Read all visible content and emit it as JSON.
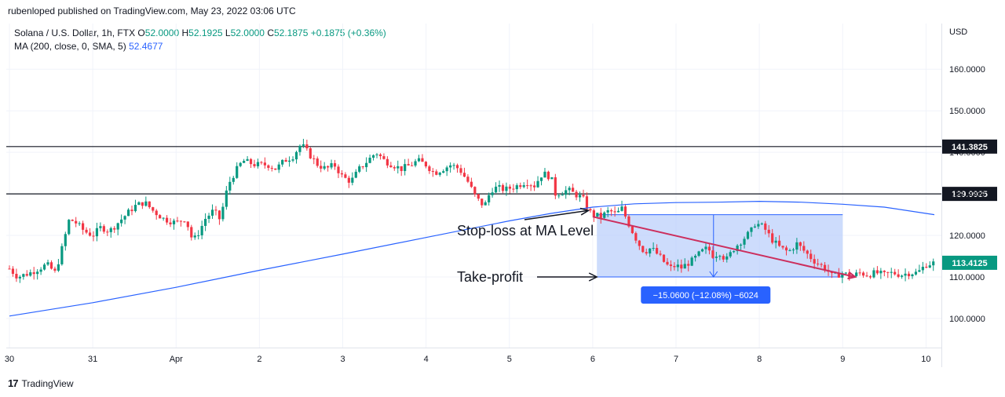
{
  "header": {
    "published": "rubenloped published on TradingView.com, May 23, 2022 03:06 UTC"
  },
  "legend": {
    "symbol": "Solana / U.S. Dollar, 1h, FTX",
    "o_label": "O",
    "o_value": "52.0000",
    "h_label": "H",
    "h_value": "52.1925",
    "l_label": "L",
    "l_value": "52.0000",
    "c_label": "C",
    "c_value": "52.1875",
    "change": "+0.1875 (+0.36%)",
    "ma_label": "MA (200, close, 0, SMA, 5)",
    "ma_value": "52.4677"
  },
  "footer": {
    "logo_glyph": "17",
    "brand": "TradingView"
  },
  "colors": {
    "up": "#089981",
    "down": "#f23645",
    "ma": "#2962ff",
    "trendline": "#cc2e5d",
    "measure_fill": "#bcd0fb",
    "measure_badge": "#2962ff",
    "hline": "#131722",
    "axis_text": "#131722",
    "grid": "#f0f3fa"
  },
  "chart_data": {
    "type": "candlestick",
    "currency": "USD",
    "y_ticks": [
      "160.0000",
      "150.0000",
      "140.0000",
      "130.0000",
      "120.0000",
      "110.0000",
      "100.0000"
    ],
    "y_tick_values": [
      160,
      150,
      140,
      130,
      120,
      110,
      100
    ],
    "ylim": [
      93,
      171
    ],
    "x_ticks": [
      "30",
      "31",
      "Apr",
      "2",
      "3",
      "4",
      "5",
      "6",
      "7",
      "8",
      "9",
      "10"
    ],
    "x_tick_days": [
      0,
      1,
      2,
      3,
      4,
      5,
      6,
      7,
      8,
      9,
      10,
      11
    ],
    "xlim": [
      0,
      11.1
    ],
    "horizontal_lines": [
      {
        "value": 141.3825,
        "label": "141.3825"
      },
      {
        "value": 129.9925,
        "label": "129.9925"
      }
    ],
    "last_price": {
      "value": 113.4125,
      "label": "113.4125"
    },
    "close_path": [
      [
        0.0,
        112
      ],
      [
        0.1,
        110
      ],
      [
        0.25,
        111
      ],
      [
        0.45,
        113
      ],
      [
        0.55,
        111
      ],
      [
        0.62,
        116
      ],
      [
        0.72,
        124
      ],
      [
        0.8,
        123
      ],
      [
        0.9,
        121
      ],
      [
        1.0,
        120
      ],
      [
        1.1,
        122
      ],
      [
        1.2,
        121
      ],
      [
        1.3,
        123
      ],
      [
        1.4,
        125
      ],
      [
        1.5,
        127
      ],
      [
        1.62,
        128
      ],
      [
        1.72,
        126
      ],
      [
        1.85,
        124
      ],
      [
        2.0,
        123
      ],
      [
        2.1,
        124
      ],
      [
        2.15,
        122
      ],
      [
        2.2,
        118.5
      ],
      [
        2.28,
        121
      ],
      [
        2.35,
        124
      ],
      [
        2.45,
        126
      ],
      [
        2.52,
        124
      ],
      [
        2.58,
        128
      ],
      [
        2.62,
        132
      ],
      [
        2.7,
        135
      ],
      [
        2.8,
        138
      ],
      [
        2.95,
        137
      ],
      [
        3.1,
        137
      ],
      [
        3.2,
        136
      ],
      [
        3.3,
        138
      ],
      [
        3.4,
        139
      ],
      [
        3.5,
        142
      ],
      [
        3.58,
        140
      ],
      [
        3.7,
        137
      ],
      [
        3.8,
        136
      ],
      [
        3.9,
        137
      ],
      [
        4.0,
        134
      ],
      [
        4.1,
        133
      ],
      [
        4.2,
        136
      ],
      [
        4.3,
        138
      ],
      [
        4.4,
        140
      ],
      [
        4.5,
        138
      ],
      [
        4.6,
        137
      ],
      [
        4.7,
        136
      ],
      [
        4.82,
        137
      ],
      [
        4.9,
        138
      ],
      [
        5.0,
        137
      ],
      [
        5.1,
        135
      ],
      [
        5.2,
        136
      ],
      [
        5.3,
        137
      ],
      [
        5.4,
        136
      ],
      [
        5.5,
        133
      ],
      [
        5.6,
        129
      ],
      [
        5.7,
        127
      ],
      [
        5.78,
        131
      ],
      [
        5.85,
        131.5
      ],
      [
        5.95,
        131
      ],
      [
        6.1,
        132
      ],
      [
        6.2,
        133
      ],
      [
        6.3,
        132
      ],
      [
        6.4,
        135
      ],
      [
        6.5,
        134
      ],
      [
        6.55,
        130
      ],
      [
        6.65,
        130.5
      ],
      [
        6.7,
        131
      ],
      [
        6.78,
        130
      ],
      [
        6.88,
        129
      ],
      [
        6.95,
        126
      ],
      [
        7.0,
        125
      ],
      [
        7.1,
        124.5
      ],
      [
        7.2,
        126
      ],
      [
        7.28,
        125
      ],
      [
        7.35,
        126.5
      ],
      [
        7.45,
        122
      ],
      [
        7.55,
        118
      ],
      [
        7.62,
        116
      ],
      [
        7.7,
        117
      ],
      [
        7.8,
        115
      ],
      [
        7.88,
        113
      ],
      [
        7.95,
        112
      ],
      [
        8.0,
        113
      ],
      [
        8.05,
        112
      ],
      [
        8.12,
        113
      ],
      [
        8.2,
        114
      ],
      [
        8.3,
        116
      ],
      [
        8.38,
        117
      ],
      [
        8.45,
        115
      ],
      [
        8.52,
        116
      ],
      [
        8.6,
        114
      ],
      [
        8.7,
        117
      ],
      [
        8.8,
        119
      ],
      [
        8.9,
        121
      ],
      [
        8.95,
        123
      ],
      [
        9.05,
        122
      ],
      [
        9.15,
        119
      ],
      [
        9.25,
        117
      ],
      [
        9.35,
        116
      ],
      [
        9.45,
        118
      ],
      [
        9.55,
        116
      ],
      [
        9.65,
        114
      ],
      [
        9.72,
        113
      ],
      [
        9.8,
        112
      ],
      [
        9.88,
        110
      ],
      [
        10.0,
        111
      ],
      [
        10.1,
        110
      ],
      [
        10.2,
        111
      ],
      [
        10.3,
        110.5
      ],
      [
        10.4,
        111
      ],
      [
        10.5,
        110.5
      ],
      [
        10.6,
        111
      ],
      [
        10.7,
        110.5
      ],
      [
        10.8,
        111
      ],
      [
        10.9,
        111
      ],
      [
        11.0,
        113
      ],
      [
        11.1,
        113.4
      ]
    ],
    "ma_path": [
      [
        0.0,
        100.6
      ],
      [
        1.0,
        103.8
      ],
      [
        2.0,
        107.5
      ],
      [
        3.0,
        111.6
      ],
      [
        4.0,
        115.5
      ],
      [
        5.0,
        119.5
      ],
      [
        6.0,
        123.5
      ],
      [
        6.5,
        125.3
      ],
      [
        7.0,
        126.8
      ],
      [
        7.5,
        127.6
      ],
      [
        8.0,
        127.9
      ],
      [
        8.5,
        128.0
      ],
      [
        9.0,
        128.2
      ],
      [
        9.5,
        128.0
      ],
      [
        10.0,
        127.5
      ],
      [
        10.5,
        126.8
      ],
      [
        11.1,
        125.0
      ]
    ],
    "trendline": {
      "from": [
        7.0,
        124.5
      ],
      "to": [
        10.15,
        110.0
      ]
    },
    "measure": {
      "x_from": 7.05,
      "x_to": 10.0,
      "y_top": 125.0,
      "y_bottom": 110.0,
      "arrow_x": 8.45,
      "label": "−15.0600 (−12.08%) −6024"
    },
    "annotations": [
      {
        "text": "Stop-loss at MA Level",
        "arrow_to": [
          6.95,
          126
        ]
      },
      {
        "text": "Take-profit",
        "arrow_to": [
          7.05,
          110
        ]
      }
    ]
  }
}
